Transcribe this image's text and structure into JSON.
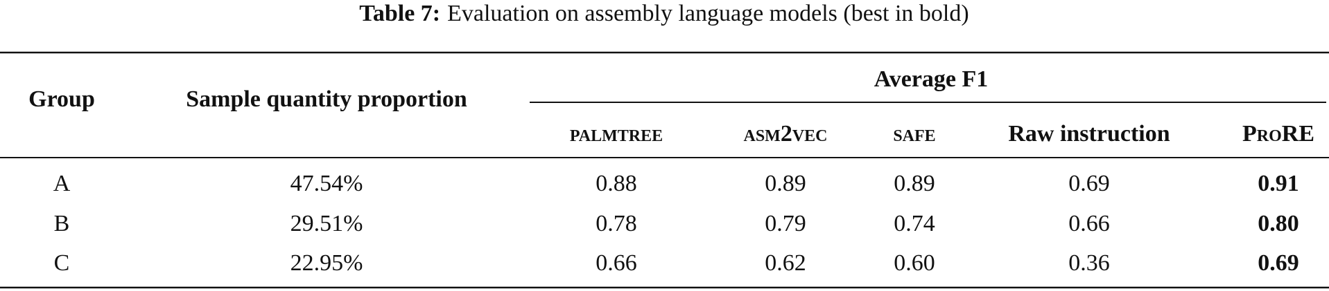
{
  "caption": {
    "label": "Table 7:",
    "text": "Evaluation on assembly language models (best in bold)"
  },
  "table": {
    "headers": {
      "group": "Group",
      "proportion": "Sample quantity proportion",
      "average": "Average F1",
      "models": [
        "palmtree",
        "asm2vec",
        "safe",
        "Raw instruction",
        "ProRE"
      ]
    },
    "rows": [
      [
        "A",
        "47.54%",
        "0.88",
        "0.89",
        "0.89",
        "0.69",
        "0.91"
      ],
      [
        "B",
        "29.51%",
        "0.78",
        "0.79",
        "0.74",
        "0.66",
        "0.80"
      ],
      [
        "C",
        "22.95%",
        "0.66",
        "0.62",
        "0.60",
        "0.36",
        "0.69"
      ]
    ]
  }
}
